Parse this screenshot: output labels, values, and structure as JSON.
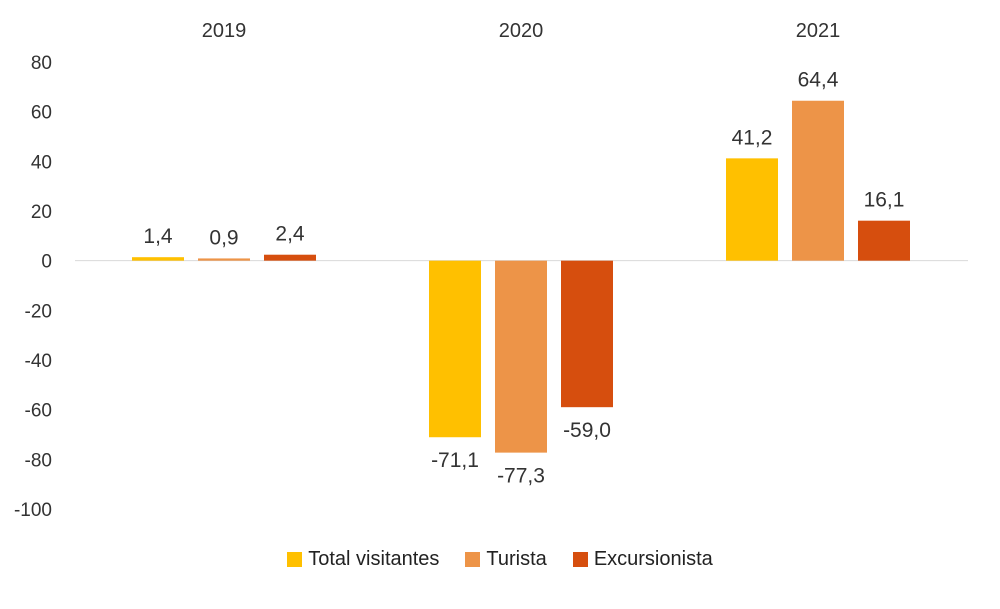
{
  "chart_data": {
    "type": "bar",
    "categories": [
      "2019",
      "2020",
      "2021"
    ],
    "series": [
      {
        "name": "Total visitantes",
        "color": "#FFC000",
        "values": [
          1.4,
          -71.1,
          41.2
        ],
        "labels": [
          "1,4",
          "-71,1",
          "41,2"
        ]
      },
      {
        "name": "Turista",
        "color": "#ED9448",
        "values": [
          0.9,
          -77.3,
          64.4
        ],
        "labels": [
          "0,9",
          "-77,3",
          "64,4"
        ]
      },
      {
        "name": "Excursionista",
        "color": "#D64E0E",
        "values": [
          2.4,
          -59.0,
          16.1
        ],
        "labels": [
          "2,4",
          "-59,0",
          "16,1"
        ]
      }
    ],
    "yticks": [
      "80",
      "60",
      "40",
      "20",
      "0",
      "-20",
      "-40",
      "-60",
      "-80",
      "-100"
    ],
    "ylim": [
      -100,
      80
    ],
    "category_labels_position": "top",
    "legend_position": "bottom",
    "grid": false
  }
}
